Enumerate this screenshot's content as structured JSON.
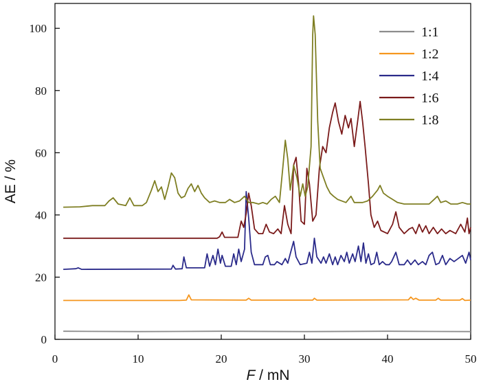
{
  "chart_data": {
    "type": "line",
    "xlabel_italic": "F",
    "xlabel_rest": " / mN",
    "ylabel": "AE / %",
    "xlim": [
      0,
      50
    ],
    "ylim": [
      0,
      108
    ],
    "x_ticks": [
      0,
      10,
      20,
      30,
      40,
      50
    ],
    "y_ticks": [
      0,
      20,
      40,
      60,
      80,
      100
    ],
    "legend_position": "top-right",
    "grid": false,
    "series": [
      {
        "name": "1:1",
        "color": "#8c8c8c",
        "points": [
          [
            1,
            2.6
          ],
          [
            10,
            2.5
          ],
          [
            20,
            2.6
          ],
          [
            30,
            2.5
          ],
          [
            40,
            2.6
          ],
          [
            50,
            2.5
          ]
        ]
      },
      {
        "name": "1:2",
        "color": "#f5961e",
        "points": [
          [
            1,
            12.5
          ],
          [
            15,
            12.5
          ],
          [
            15.8,
            12.6
          ],
          [
            16.1,
            14.3
          ],
          [
            16.4,
            12.7
          ],
          [
            23,
            12.6
          ],
          [
            23.3,
            13.2
          ],
          [
            23.6,
            12.6
          ],
          [
            31,
            12.6
          ],
          [
            31.2,
            13.2
          ],
          [
            31.5,
            12.6
          ],
          [
            42.5,
            12.7
          ],
          [
            42.8,
            13.6
          ],
          [
            43.1,
            12.8
          ],
          [
            43.4,
            13.2
          ],
          [
            43.8,
            12.6
          ],
          [
            45.8,
            12.6
          ],
          [
            46.1,
            13.2
          ],
          [
            46.4,
            12.6
          ],
          [
            48.7,
            12.6
          ],
          [
            49,
            13.1
          ],
          [
            49.3,
            12.5
          ],
          [
            50,
            12.6
          ]
        ]
      },
      {
        "name": "1:4",
        "color": "#2a2a8a",
        "points": [
          [
            1,
            22.5
          ],
          [
            2.5,
            22.7
          ],
          [
            2.8,
            23
          ],
          [
            3.2,
            22.5
          ],
          [
            14,
            22.6
          ],
          [
            14.2,
            23.8
          ],
          [
            14.5,
            22.6
          ],
          [
            15.3,
            22.7
          ],
          [
            15.5,
            26.5
          ],
          [
            15.8,
            23
          ],
          [
            18,
            23
          ],
          [
            18.3,
            27.5
          ],
          [
            18.6,
            23.5
          ],
          [
            19,
            27
          ],
          [
            19.3,
            24
          ],
          [
            19.6,
            29
          ],
          [
            19.9,
            24.5
          ],
          [
            20.1,
            27
          ],
          [
            20.5,
            23.5
          ],
          [
            21.2,
            23.5
          ],
          [
            21.5,
            27.5
          ],
          [
            21.8,
            24
          ],
          [
            22.1,
            29
          ],
          [
            22.4,
            25
          ],
          [
            22.8,
            29
          ],
          [
            23,
            47.5
          ],
          [
            23.3,
            39
          ],
          [
            23.6,
            28
          ],
          [
            24,
            24
          ],
          [
            25,
            24
          ],
          [
            25.3,
            26.5
          ],
          [
            25.6,
            27
          ],
          [
            25.9,
            24
          ],
          [
            26.4,
            24
          ],
          [
            26.7,
            25
          ],
          [
            27.3,
            24
          ],
          [
            27.7,
            26
          ],
          [
            28,
            24.5
          ],
          [
            28.3,
            27.5
          ],
          [
            28.7,
            31.5
          ],
          [
            29,
            26.5
          ],
          [
            29.5,
            24
          ],
          [
            30.3,
            24.5
          ],
          [
            30.6,
            28
          ],
          [
            30.9,
            24.5
          ],
          [
            31.2,
            32.5
          ],
          [
            31.5,
            26.5
          ],
          [
            32,
            24.5
          ],
          [
            32.3,
            26.5
          ],
          [
            32.6,
            24.5
          ],
          [
            33,
            27.5
          ],
          [
            33.4,
            24
          ],
          [
            33.7,
            26.5
          ],
          [
            34,
            24
          ],
          [
            34.4,
            27
          ],
          [
            34.8,
            25
          ],
          [
            35.1,
            28
          ],
          [
            35.4,
            24.5
          ],
          [
            35.8,
            27.5
          ],
          [
            36.1,
            25
          ],
          [
            36.5,
            30
          ],
          [
            36.8,
            25
          ],
          [
            37.1,
            31
          ],
          [
            37.4,
            24.5
          ],
          [
            37.7,
            27.5
          ],
          [
            38,
            24
          ],
          [
            38.4,
            24.5
          ],
          [
            38.7,
            28
          ],
          [
            39,
            24
          ],
          [
            39.4,
            25
          ],
          [
            39.8,
            24
          ],
          [
            40.2,
            24
          ],
          [
            40.5,
            25
          ],
          [
            41,
            28
          ],
          [
            41.4,
            24
          ],
          [
            42,
            24
          ],
          [
            42.4,
            25.5
          ],
          [
            42.8,
            24
          ],
          [
            43.3,
            25.5
          ],
          [
            43.7,
            24
          ],
          [
            44.2,
            25
          ],
          [
            44.6,
            24
          ],
          [
            45,
            27
          ],
          [
            45.4,
            28
          ],
          [
            45.8,
            24
          ],
          [
            46.2,
            24.5
          ],
          [
            46.6,
            27
          ],
          [
            47,
            24
          ],
          [
            47.5,
            26
          ],
          [
            48,
            25
          ],
          [
            48.5,
            26
          ],
          [
            49,
            27
          ],
          [
            49.4,
            24.5
          ],
          [
            49.8,
            28
          ],
          [
            50,
            25.5
          ]
        ]
      },
      {
        "name": "1:6",
        "color": "#7a1a1a",
        "points": [
          [
            1,
            32.5
          ],
          [
            10,
            32.5
          ],
          [
            19.5,
            32.5
          ],
          [
            19.8,
            33
          ],
          [
            20.1,
            34.5
          ],
          [
            20.4,
            32.8
          ],
          [
            22,
            32.8
          ],
          [
            22.4,
            38
          ],
          [
            22.7,
            36
          ],
          [
            23,
            40.5
          ],
          [
            23.3,
            47
          ],
          [
            23.6,
            43
          ],
          [
            24,
            35.5
          ],
          [
            24.5,
            34
          ],
          [
            25,
            34
          ],
          [
            25.4,
            37
          ],
          [
            25.8,
            34.5
          ],
          [
            26.3,
            34
          ],
          [
            26.8,
            35.5
          ],
          [
            27.2,
            34
          ],
          [
            27.6,
            43
          ],
          [
            28,
            37
          ],
          [
            28.4,
            34
          ],
          [
            28.7,
            56
          ],
          [
            29,
            58.5
          ],
          [
            29.3,
            50
          ],
          [
            29.6,
            38
          ],
          [
            30,
            37
          ],
          [
            30.3,
            55
          ],
          [
            30.6,
            50
          ],
          [
            31,
            38
          ],
          [
            31.4,
            40
          ],
          [
            31.8,
            55
          ],
          [
            32.2,
            62
          ],
          [
            32.6,
            60
          ],
          [
            33,
            68
          ],
          [
            33.4,
            73
          ],
          [
            33.7,
            76
          ],
          [
            34.1,
            70
          ],
          [
            34.5,
            66
          ],
          [
            34.9,
            72
          ],
          [
            35.3,
            68
          ],
          [
            35.6,
            71
          ],
          [
            36,
            62
          ],
          [
            36.4,
            70
          ],
          [
            36.7,
            76.5
          ],
          [
            37,
            70
          ],
          [
            37.3,
            62
          ],
          [
            37.7,
            50
          ],
          [
            38,
            40
          ],
          [
            38.4,
            36
          ],
          [
            38.8,
            38
          ],
          [
            39.2,
            35
          ],
          [
            40,
            34
          ],
          [
            40.6,
            37
          ],
          [
            41,
            41
          ],
          [
            41.4,
            36
          ],
          [
            42,
            34
          ],
          [
            42.6,
            35.5
          ],
          [
            43,
            36
          ],
          [
            43.4,
            34
          ],
          [
            43.8,
            37
          ],
          [
            44.2,
            34.5
          ],
          [
            44.6,
            36.5
          ],
          [
            45,
            34
          ],
          [
            45.5,
            36
          ],
          [
            46,
            34
          ],
          [
            46.5,
            35.5
          ],
          [
            47,
            34
          ],
          [
            47.5,
            35
          ],
          [
            48.2,
            34
          ],
          [
            48.8,
            37
          ],
          [
            49.3,
            34.5
          ],
          [
            49.6,
            39
          ],
          [
            49.8,
            34
          ],
          [
            50,
            36
          ]
        ]
      },
      {
        "name": "1:8",
        "color": "#7e7e22",
        "points": [
          [
            1,
            42.5
          ],
          [
            3,
            42.6
          ],
          [
            4.5,
            43
          ],
          [
            6,
            43
          ],
          [
            6.5,
            44.5
          ],
          [
            7,
            45.5
          ],
          [
            7.6,
            43.5
          ],
          [
            8.5,
            43
          ],
          [
            9,
            45.5
          ],
          [
            9.5,
            43
          ],
          [
            10.5,
            43
          ],
          [
            11,
            44
          ],
          [
            11.6,
            48
          ],
          [
            12,
            51
          ],
          [
            12.4,
            47.5
          ],
          [
            12.8,
            49
          ],
          [
            13.2,
            45
          ],
          [
            13.6,
            49
          ],
          [
            14,
            53.5
          ],
          [
            14.4,
            52
          ],
          [
            14.8,
            47
          ],
          [
            15.2,
            45.5
          ],
          [
            15.6,
            46
          ],
          [
            16,
            48.5
          ],
          [
            16.4,
            50
          ],
          [
            16.8,
            47.5
          ],
          [
            17.2,
            49.5
          ],
          [
            17.6,
            47
          ],
          [
            18,
            45.5
          ],
          [
            18.6,
            44
          ],
          [
            19.2,
            44.5
          ],
          [
            19.8,
            44
          ],
          [
            20.5,
            44
          ],
          [
            21,
            45
          ],
          [
            21.6,
            44
          ],
          [
            22.2,
            44.5
          ],
          [
            22.8,
            46
          ],
          [
            23.3,
            44
          ],
          [
            23.8,
            44
          ],
          [
            24.5,
            43.5
          ],
          [
            25,
            44
          ],
          [
            25.5,
            43.5
          ],
          [
            26,
            45
          ],
          [
            26.5,
            46
          ],
          [
            27,
            44
          ],
          [
            27.4,
            55
          ],
          [
            27.7,
            64
          ],
          [
            28,
            58
          ],
          [
            28.3,
            48
          ],
          [
            28.7,
            56
          ],
          [
            29.1,
            52
          ],
          [
            29.5,
            46
          ],
          [
            29.8,
            50
          ],
          [
            30.1,
            46
          ],
          [
            30.4,
            49
          ],
          [
            30.8,
            62
          ],
          [
            31,
            98
          ],
          [
            31.1,
            104
          ],
          [
            31.3,
            98
          ],
          [
            31.6,
            70
          ],
          [
            31.9,
            55
          ],
          [
            32.3,
            52
          ],
          [
            32.7,
            49
          ],
          [
            33.1,
            47
          ],
          [
            33.5,
            46
          ],
          [
            34,
            45
          ],
          [
            35,
            44
          ],
          [
            35.6,
            46
          ],
          [
            36,
            44
          ],
          [
            37,
            44
          ],
          [
            37.6,
            44.5
          ],
          [
            38.2,
            46
          ],
          [
            38.8,
            48
          ],
          [
            39.1,
            49.5
          ],
          [
            39.5,
            47
          ],
          [
            40,
            46
          ],
          [
            40.6,
            45
          ],
          [
            41.2,
            44
          ],
          [
            42,
            43.5
          ],
          [
            43,
            43.5
          ],
          [
            44,
            43.5
          ],
          [
            45,
            43.5
          ],
          [
            45.6,
            45
          ],
          [
            46,
            46
          ],
          [
            46.4,
            44
          ],
          [
            47,
            44.5
          ],
          [
            47.6,
            43.5
          ],
          [
            48.4,
            43.5
          ],
          [
            49,
            44
          ],
          [
            49.6,
            43.5
          ],
          [
            50,
            43.5
          ]
        ]
      }
    ]
  }
}
